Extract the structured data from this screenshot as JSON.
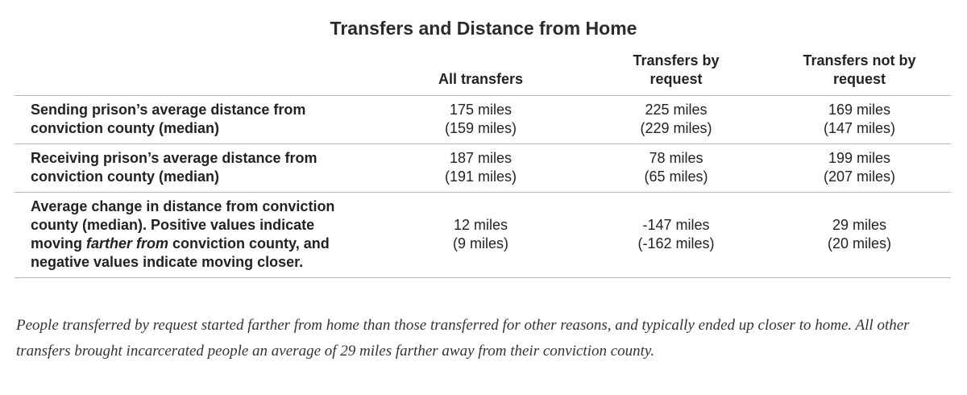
{
  "title": "Transfers and Distance from Home",
  "table": {
    "headers": {
      "row_label": "",
      "all": "All transfers",
      "by_request": "Transfers by request",
      "not_by_request": "Transfers not by request"
    },
    "rows": [
      {
        "label": "Sending prison’s average distance from conviction county (median)",
        "all": {
          "avg": "175 miles",
          "median": "(159 miles)"
        },
        "by_request": {
          "avg": "225 miles",
          "median": "(229 miles)"
        },
        "not_by_request": {
          "avg": "169 miles",
          "median": "(147 miles)"
        }
      },
      {
        "label": "Receiving prison’s average distance from conviction county (median)",
        "all": {
          "avg": "187 miles",
          "median": "(191 miles)"
        },
        "by_request": {
          "avg": "78 miles",
          "median": "(65 miles)"
        },
        "not_by_request": {
          "avg": "199 miles",
          "median": "(207 miles)"
        }
      },
      {
        "label_before": "Average change in distance from conviction county (median). Positive values indicate moving ",
        "label_italic": "farther from",
        "label_after": " conviction county, and negative values indicate moving closer.",
        "all": {
          "avg": "12 miles",
          "median": "(9 miles)"
        },
        "by_request": {
          "avg": "-147 miles",
          "median": "(-162 miles)"
        },
        "not_by_request": {
          "avg": "29 miles",
          "median": "(20 miles)"
        }
      }
    ]
  },
  "caption": "People transferred by request started farther from home than those transferred for other reasons, and typically ended up closer to home. All other transfers brought incarcerated people an average of 29 miles farther away from their conviction county."
}
